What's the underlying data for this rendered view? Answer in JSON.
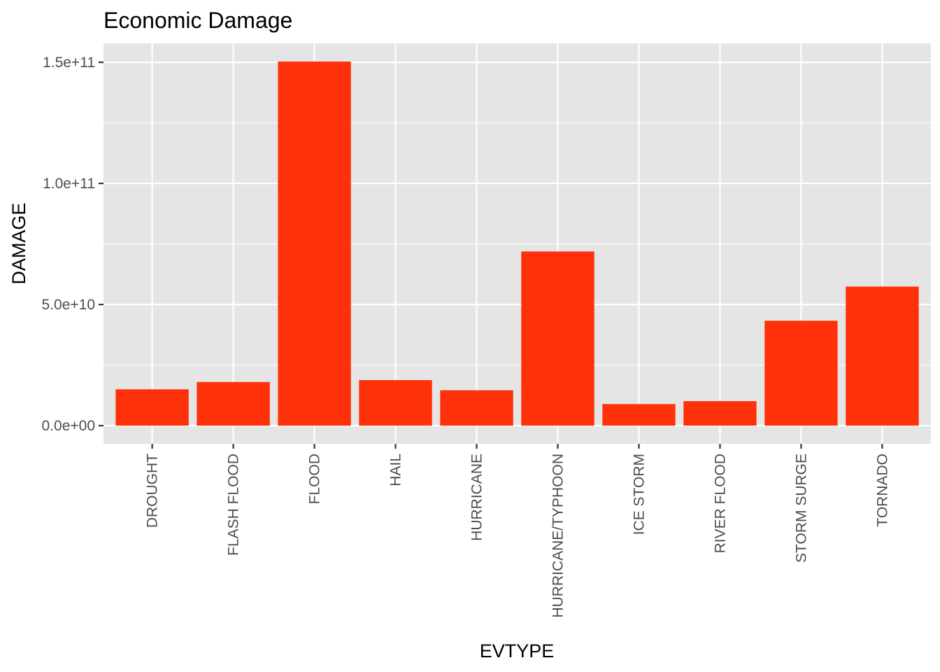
{
  "chart_data": {
    "type": "bar",
    "title": "Economic Damage",
    "xlabel": "EVTYPE",
    "ylabel": "DAMAGE",
    "categories": [
      "DROUGHT",
      "FLASH FLOOD",
      "FLOOD",
      "HAIL",
      "HURRICANE",
      "HURRICANE/TYPHOON",
      "ICE STORM",
      "RIVER FLOOD",
      "STORM SURGE",
      "TORNADO"
    ],
    "values": [
      15000000000,
      18000000000,
      150300000000,
      18800000000,
      14600000000,
      71900000000,
      8900000000,
      10100000000,
      43300000000,
      57400000000
    ],
    "ylim": [
      -7500000000,
      157800000000
    ],
    "y_ticks": [
      0,
      50000000000,
      100000000000,
      150000000000
    ],
    "y_tick_labels": [
      "0.0e+00",
      "5.0e+10",
      "1.0e+11",
      "1.5e+11"
    ],
    "grid": true,
    "colors": {
      "bar": "#FF310A",
      "panel": "#E5E5E5",
      "grid": "#FFFFFF",
      "tick_text": "#4D4D4D",
      "tick_mark": "#333333"
    }
  }
}
